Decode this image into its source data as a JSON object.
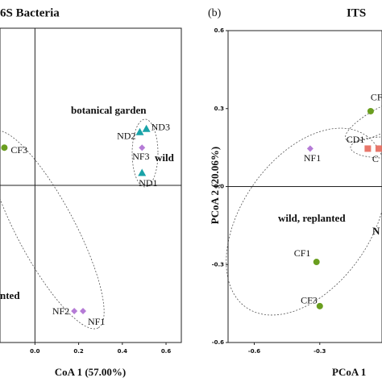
{
  "chart_data": [
    {
      "type": "scatter",
      "title": "6S Bacteria",
      "x_label": "CoA 1 (57.00%)",
      "xlim": [
        -0.16,
        0.67
      ],
      "ylim": [
        -0.5,
        0.5
      ],
      "xticks": [
        {
          "value": 0,
          "label": "0.0"
        },
        0.2,
        0.4,
        0.6
      ],
      "annotations": [
        "botanical garden",
        "wild",
        "nted"
      ],
      "series": [
        {
          "color": "#6a9e1f",
          "marker": "circle",
          "labels": [
            "CF3"
          ],
          "x": [
            -0.14
          ],
          "values": [
            0.12
          ]
        },
        {
          "color": "#1aa3a8",
          "marker": "triangle",
          "labels": [
            "ND2",
            "ND3",
            "ND1"
          ],
          "x": [
            0.48,
            0.51,
            0.49
          ],
          "values": [
            0.17,
            0.18,
            0.04
          ]
        },
        {
          "color": "#b57bd6",
          "marker": "diamond",
          "labels": [
            "NF3",
            "NF2",
            "NF1"
          ],
          "x": [
            0.49,
            0.18,
            0.22
          ],
          "values": [
            0.12,
            -0.4,
            -0.4
          ]
        }
      ]
    },
    {
      "type": "scatter",
      "panel": "(b)",
      "title": "ITS",
      "x_label": "PCoA 1",
      "y_label": "PCoA 2 (20.06%)",
      "xlim": [
        -0.72,
        -0.015
      ],
      "ylim": [
        -0.6,
        0.6
      ],
      "xticks": [
        -0.6,
        -0.3
      ],
      "yticks": [
        0.6,
        0.3,
        {
          "value": 0,
          "label": "0.0"
        },
        -0.3,
        -0.6
      ],
      "annotations": [
        "wild, replanted",
        "N"
      ],
      "series": [
        {
          "color": "#6a9e1f",
          "marker": "circle",
          "labels": [
            "CF",
            "CF1",
            "CF3"
          ],
          "x": [
            -0.067,
            -0.315,
            -0.3
          ],
          "values": [
            0.29,
            -0.29,
            -0.46
          ]
        },
        {
          "color": "#e8776b",
          "marker": "square",
          "labels": [
            "CD1",
            "C"
          ],
          "x": [
            -0.08,
            -0.03
          ],
          "values": [
            0.146,
            0.146
          ]
        },
        {
          "color": "#b57bd6",
          "marker": "diamond",
          "labels": [
            "NF1"
          ],
          "x": [
            -0.344
          ],
          "values": [
            0.146
          ]
        }
      ]
    }
  ]
}
